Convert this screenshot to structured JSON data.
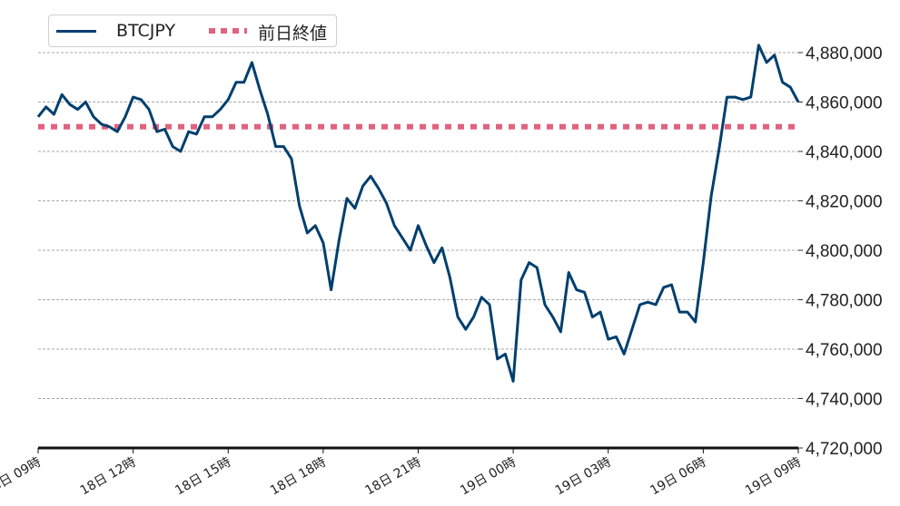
{
  "chart_data": {
    "type": "line",
    "title": "",
    "xlabel": "",
    "ylabel": "",
    "ylim": [
      4720000,
      4888000
    ],
    "yticks": [
      4720000,
      4740000,
      4760000,
      4780000,
      4800000,
      4820000,
      4840000,
      4860000,
      4880000
    ],
    "ytick_labels": [
      "4,720,000",
      "4,740,000",
      "4,760,000",
      "4,780,000",
      "4,800,000",
      "4,820,000",
      "4,840,000",
      "4,860,000",
      "4,880,000"
    ],
    "xtick_labels": [
      "18日 09時",
      "18日 12時",
      "18日 15時",
      "18日 18時",
      "18日 21時",
      "19日 00時",
      "19日 03時",
      "19日 06時",
      "19日 09時"
    ],
    "grid": true,
    "legend_placement": "top-left",
    "series": [
      {
        "name": "BTCJPY",
        "color": "#003f6e",
        "style": "solid",
        "values": [
          4854000,
          4858000,
          4855000,
          4863000,
          4859000,
          4857000,
          4860000,
          4854000,
          4851000,
          4850000,
          4848000,
          4854000,
          4862000,
          4861000,
          4857000,
          4848000,
          4849000,
          4842000,
          4840000,
          4848000,
          4847000,
          4854000,
          4854000,
          4857000,
          4861000,
          4868000,
          4868000,
          4876000,
          4865000,
          4855000,
          4842000,
          4842000,
          4837000,
          4818000,
          4807000,
          4810000,
          4803000,
          4784000,
          4804000,
          4821000,
          4817000,
          4826000,
          4830000,
          4825000,
          4819000,
          4810000,
          4805000,
          4800000,
          4810000,
          4802000,
          4795000,
          4801000,
          4789000,
          4773000,
          4768000,
          4773000,
          4781000,
          4778000,
          4756000,
          4758000,
          4747000,
          4788000,
          4795000,
          4793000,
          4778000,
          4773000,
          4767000,
          4791000,
          4784000,
          4783000,
          4773000,
          4775000,
          4764000,
          4765000,
          4758000,
          4768000,
          4778000,
          4779000,
          4778000,
          4785000,
          4786000,
          4775000,
          4775000,
          4771000,
          4795000,
          4822000,
          4841000,
          4862000,
          4862000,
          4861000,
          4862000,
          4883000,
          4876000,
          4879000,
          4868000,
          4866000,
          4860000
        ]
      },
      {
        "name": "前日終値",
        "color": "#e0637f",
        "style": "dotted",
        "value": 4850000
      }
    ],
    "x_start": "18日 09:00",
    "x_end": "19日 09:00",
    "x_interval": "15分"
  }
}
